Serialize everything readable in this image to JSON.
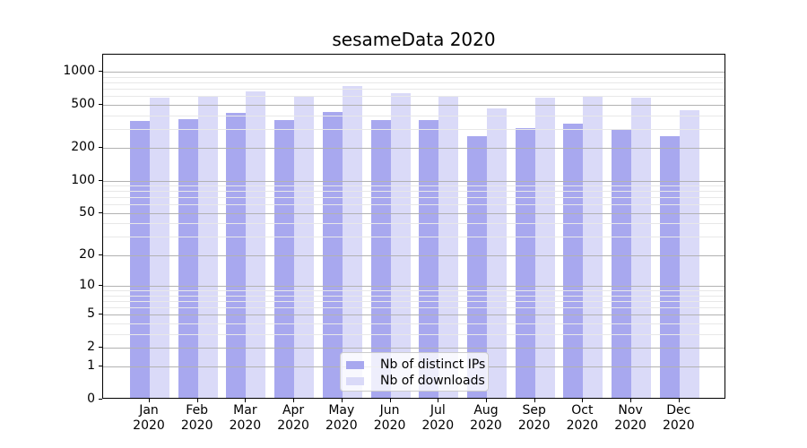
{
  "chart_data": {
    "type": "bar",
    "title": "sesameData 2020",
    "categories": [
      "Jan",
      "Feb",
      "Mar",
      "Apr",
      "May",
      "Jun",
      "Jul",
      "Aug",
      "Sep",
      "Oct",
      "Nov",
      "Dec"
    ],
    "category_year": "2020",
    "series": [
      {
        "name": "Nb of distinct IPs",
        "color": "#a8a8ef",
        "values": [
          345,
          358,
          405,
          350,
          413,
          346,
          351,
          247,
          292,
          325,
          282,
          247
        ]
      },
      {
        "name": "Nb of downloads",
        "color": "#dadaf8",
        "values": [
          562,
          570,
          634,
          581,
          716,
          611,
          585,
          443,
          559,
          569,
          563,
          431
        ]
      }
    ],
    "yaxis": {
      "scale": "log1p",
      "major_ticks": [
        1000,
        500,
        200,
        100,
        50,
        20,
        10,
        5,
        2,
        1,
        0
      ],
      "minor_gridlines": [
        900,
        800,
        700,
        600,
        400,
        300,
        90,
        80,
        70,
        60,
        40,
        30,
        9,
        8,
        7,
        6,
        4,
        3
      ],
      "max": 1440,
      "min": 0
    },
    "xlabel": "",
    "ylabel": "",
    "grid": true,
    "legend": {
      "position": "bottom-center",
      "entries": [
        "Nb of distinct IPs",
        "Nb of downloads"
      ]
    },
    "colors": {
      "major_grid": "#b2b2b2",
      "minor_grid": "#e8e8e8",
      "spine": "#000000",
      "text": "#000000"
    }
  }
}
